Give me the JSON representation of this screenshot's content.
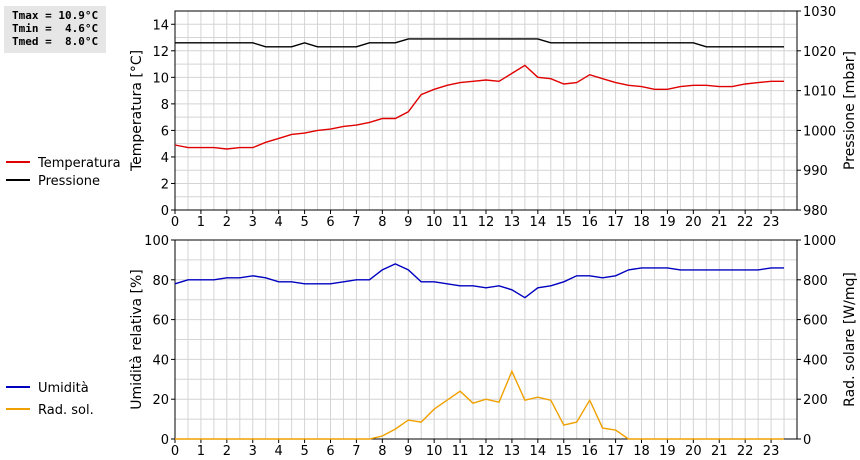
{
  "stats": {
    "tmax": "Tmax = 10.9°C",
    "tmin": "Tmin =  4.6°C",
    "tmed": "Tmed =  8.0°C"
  },
  "chart_data": [
    {
      "type": "line",
      "x": [
        0,
        0.5,
        1,
        1.5,
        2,
        2.5,
        3,
        3.5,
        4,
        4.5,
        5,
        5.5,
        6,
        6.5,
        7,
        7.5,
        8,
        8.5,
        9,
        9.5,
        10,
        10.5,
        11,
        11.5,
        12,
        12.5,
        13,
        13.5,
        14,
        14.5,
        15,
        15.5,
        16,
        16.5,
        17,
        17.5,
        18,
        18.5,
        19,
        19.5,
        20,
        20.5,
        21,
        21.5,
        22,
        22.5,
        23,
        23.5
      ],
      "series": [
        {
          "name": "Temperatura",
          "axis": "left",
          "color": "#e00000",
          "values": [
            4.9,
            4.7,
            4.7,
            4.7,
            4.6,
            4.7,
            4.7,
            5.1,
            5.4,
            5.7,
            5.8,
            6.0,
            6.1,
            6.3,
            6.4,
            6.6,
            6.9,
            6.9,
            7.4,
            8.7,
            9.1,
            9.4,
            9.6,
            9.7,
            9.8,
            9.7,
            10.3,
            10.9,
            10.0,
            9.9,
            9.5,
            9.6,
            10.2,
            9.9,
            9.6,
            9.4,
            9.3,
            9.1,
            9.1,
            9.3,
            9.4,
            9.4,
            9.3,
            9.3,
            9.5,
            9.6,
            9.7,
            9.7
          ]
        },
        {
          "name": "Pressione",
          "axis": "right",
          "color": "#000000",
          "values": [
            1022,
            1022,
            1022,
            1022,
            1022,
            1022,
            1022,
            1021,
            1021,
            1021,
            1022,
            1021,
            1021,
            1021,
            1021,
            1022,
            1022,
            1022,
            1023,
            1023,
            1023,
            1023,
            1023,
            1023,
            1023,
            1023,
            1023,
            1023,
            1023,
            1022,
            1022,
            1022,
            1022,
            1022,
            1022,
            1022,
            1022,
            1022,
            1022,
            1022,
            1022,
            1021,
            1021,
            1021,
            1021,
            1021,
            1021,
            1021
          ]
        }
      ],
      "ylabel": "Temperatura [°C]",
      "ylabel_right": "Pressione [mbar]",
      "xlim": [
        0,
        24
      ],
      "ylim": [
        0,
        15
      ],
      "ylim_right": [
        980,
        1030
      ],
      "xticks": [
        "0",
        "1",
        "2",
        "3",
        "4",
        "5",
        "6",
        "7",
        "8",
        "9",
        "10",
        "11",
        "12",
        "13",
        "14",
        "15",
        "16",
        "17",
        "18",
        "19",
        "20",
        "21",
        "22",
        "23"
      ],
      "yticks": [
        "0",
        "2",
        "4",
        "6",
        "8",
        "10",
        "12",
        "14"
      ],
      "yticks_right": [
        "980",
        "990",
        "1000",
        "1010",
        "1020",
        "1030"
      ],
      "grid": true,
      "legend": "left"
    },
    {
      "type": "line",
      "x": [
        0,
        0.5,
        1,
        1.5,
        2,
        2.5,
        3,
        3.5,
        4,
        4.5,
        5,
        5.5,
        6,
        6.5,
        7,
        7.5,
        8,
        8.5,
        9,
        9.5,
        10,
        10.5,
        11,
        11.5,
        12,
        12.5,
        13,
        13.5,
        14,
        14.5,
        15,
        15.5,
        16,
        16.5,
        17,
        17.5,
        18,
        18.5,
        19,
        19.5,
        20,
        20.5,
        21,
        21.5,
        22,
        22.5,
        23,
        23.5
      ],
      "series": [
        {
          "name": "Umidità",
          "axis": "left",
          "color": "#0000c0",
          "values": [
            78,
            80,
            80,
            80,
            81,
            81,
            82,
            81,
            79,
            79,
            78,
            78,
            78,
            79,
            80,
            80,
            85,
            88,
            85,
            79,
            79,
            78,
            77,
            77,
            76,
            77,
            75,
            71,
            76,
            77,
            79,
            82,
            82,
            81,
            82,
            85,
            86,
            86,
            86,
            85,
            85,
            85,
            85,
            85,
            85,
            85,
            86,
            86
          ]
        },
        {
          "name": "Rad. sol.",
          "axis": "right",
          "color": "#f0a000",
          "values": [
            0,
            0,
            0,
            0,
            0,
            0,
            0,
            0,
            0,
            0,
            0,
            0,
            0,
            0,
            0,
            0,
            15,
            50,
            95,
            85,
            150,
            195,
            240,
            180,
            200,
            185,
            340,
            195,
            210,
            195,
            70,
            85,
            195,
            55,
            45,
            0,
            0,
            0,
            0,
            0,
            0,
            0,
            0,
            0,
            0,
            0,
            0,
            0
          ]
        }
      ],
      "ylabel": "Umidità relativa [%]",
      "ylabel_right": "Rad. solare [W/mq]",
      "xlim": [
        0,
        24
      ],
      "ylim": [
        0,
        100
      ],
      "ylim_right": [
        0,
        1000
      ],
      "xticks": [
        "0",
        "1",
        "2",
        "3",
        "4",
        "5",
        "6",
        "7",
        "8",
        "9",
        "10",
        "11",
        "12",
        "13",
        "14",
        "15",
        "16",
        "17",
        "18",
        "19",
        "20",
        "21",
        "22",
        "23"
      ],
      "yticks": [
        "0",
        "20",
        "40",
        "60",
        "80",
        "100"
      ],
      "yticks_right": [
        "0",
        "200",
        "400",
        "600",
        "800",
        "1000"
      ],
      "grid": true,
      "legend": "left"
    }
  ]
}
